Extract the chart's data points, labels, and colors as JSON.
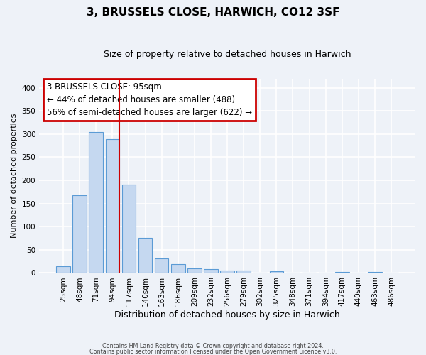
{
  "title": "3, BRUSSELS CLOSE, HARWICH, CO12 3SF",
  "subtitle": "Size of property relative to detached houses in Harwich",
  "xlabel": "Distribution of detached houses by size in Harwich",
  "ylabel": "Number of detached properties",
  "categories": [
    "25sqm",
    "48sqm",
    "71sqm",
    "94sqm",
    "117sqm",
    "140sqm",
    "163sqm",
    "186sqm",
    "209sqm",
    "232sqm",
    "256sqm",
    "279sqm",
    "302sqm",
    "325sqm",
    "348sqm",
    "371sqm",
    "394sqm",
    "417sqm",
    "440sqm",
    "463sqm",
    "486sqm"
  ],
  "values": [
    15,
    168,
    305,
    289,
    191,
    76,
    32,
    19,
    10,
    9,
    5,
    5,
    0,
    4,
    0,
    0,
    0,
    3,
    0,
    3,
    0
  ],
  "bar_color": "#c5d8f0",
  "bar_edge_color": "#5b9bd5",
  "line_color": "#cc0000",
  "marker_label": "3 BRUSSELS CLOSE: 95sqm",
  "annotation_line1": "← 44% of detached houses are smaller (488)",
  "annotation_line2": "56% of semi-detached houses are larger (622) →",
  "box_edge_color": "#cc0000",
  "ylim": [
    0,
    420
  ],
  "yticks": [
    0,
    50,
    100,
    150,
    200,
    250,
    300,
    350,
    400
  ],
  "footer1": "Contains HM Land Registry data © Crown copyright and database right 2024.",
  "footer2": "Contains public sector information licensed under the Open Government Licence v3.0.",
  "background_color": "#eef2f8",
  "grid_color": "#ffffff",
  "title_fontsize": 11,
  "subtitle_fontsize": 9,
  "bar_width": 0.85,
  "red_line_bar_index": 3,
  "ylabel_fontsize": 8,
  "xlabel_fontsize": 9,
  "tick_fontsize": 7.5,
  "annot_fontsize": 8.5
}
